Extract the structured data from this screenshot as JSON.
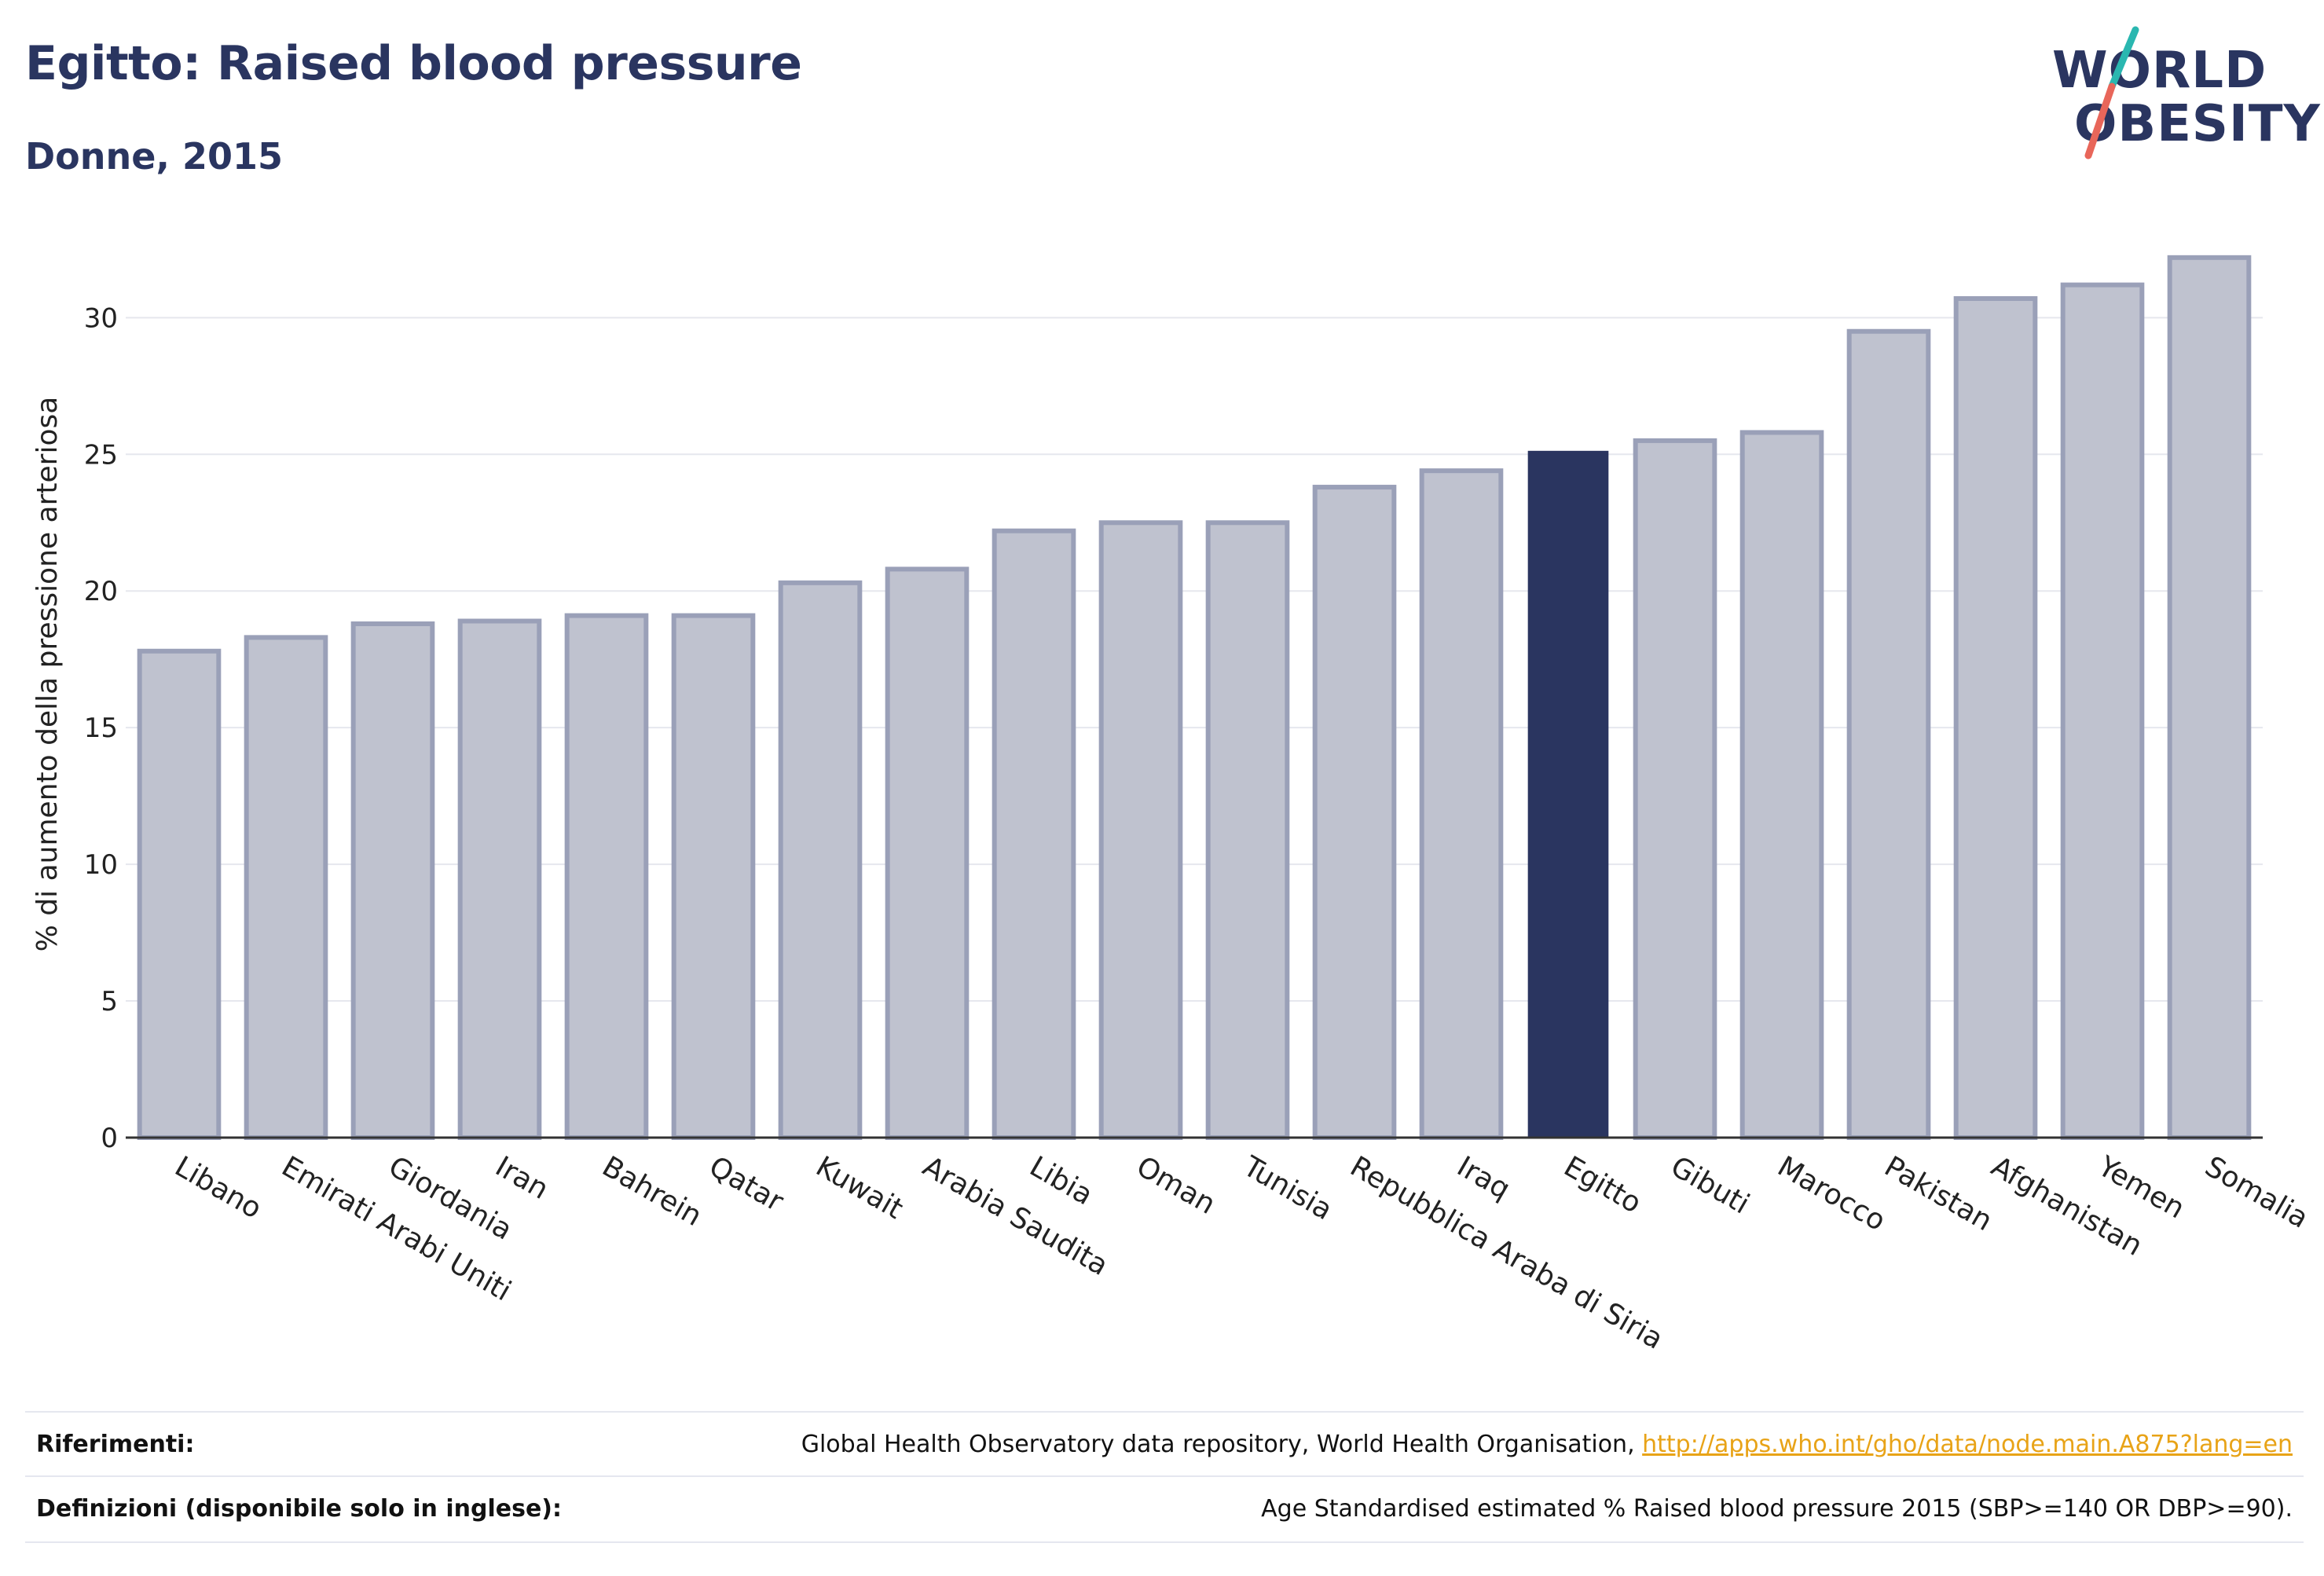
{
  "header": {
    "title": "Egitto: Raised blood pressure",
    "subtitle": "Donne, 2015"
  },
  "logo": {
    "line1": "WORLD",
    "line2": "OBESITY",
    "accent_colors": [
      "#2ab7b0",
      "#e8665a"
    ]
  },
  "colors": {
    "bar_default_fill": "#bfc2cf",
    "bar_default_stroke": "#9aa0b8",
    "bar_highlight": "#2a3560",
    "gridline": "#e6e7ee",
    "axis": "#333333"
  },
  "chart_data": {
    "type": "bar",
    "title": "",
    "xlabel": "",
    "ylabel": "% di aumento della pressione arteriosa",
    "ylim": [
      0,
      33
    ],
    "yticks": [
      0,
      5,
      10,
      15,
      20,
      25,
      30
    ],
    "grid": true,
    "highlight": "Egitto",
    "categories": [
      "Libano",
      "Emirati Arabi Uniti",
      "Giordania",
      "Iran",
      "Bahrein",
      "Qatar",
      "Kuwait",
      "Arabia Saudita",
      "Libia",
      "Oman",
      "Tunisia",
      "Repubblica Araba di Siria",
      "Iraq",
      "Egitto",
      "Gibuti",
      "Marocco",
      "Pakistan",
      "Afghanistan",
      "Yemen",
      "Somalia"
    ],
    "values": [
      17.8,
      18.3,
      18.8,
      18.9,
      19.1,
      19.1,
      20.3,
      20.8,
      22.2,
      22.5,
      22.5,
      23.8,
      24.4,
      25.1,
      25.5,
      25.8,
      29.5,
      30.7,
      31.2,
      32.2
    ]
  },
  "footer": {
    "references_label": "Riferimenti:",
    "references_text": "Global Health Observatory data repository, World Health Organisation, ",
    "references_link": "http://apps.who.int/gho/data/node.main.A875?lang=en",
    "definitions_label": "Definizioni (disponibile solo in inglese):",
    "definitions_text": "Age Standardised estimated % Raised blood pressure 2015 (SBP>=140 OR DBP>=90)."
  }
}
